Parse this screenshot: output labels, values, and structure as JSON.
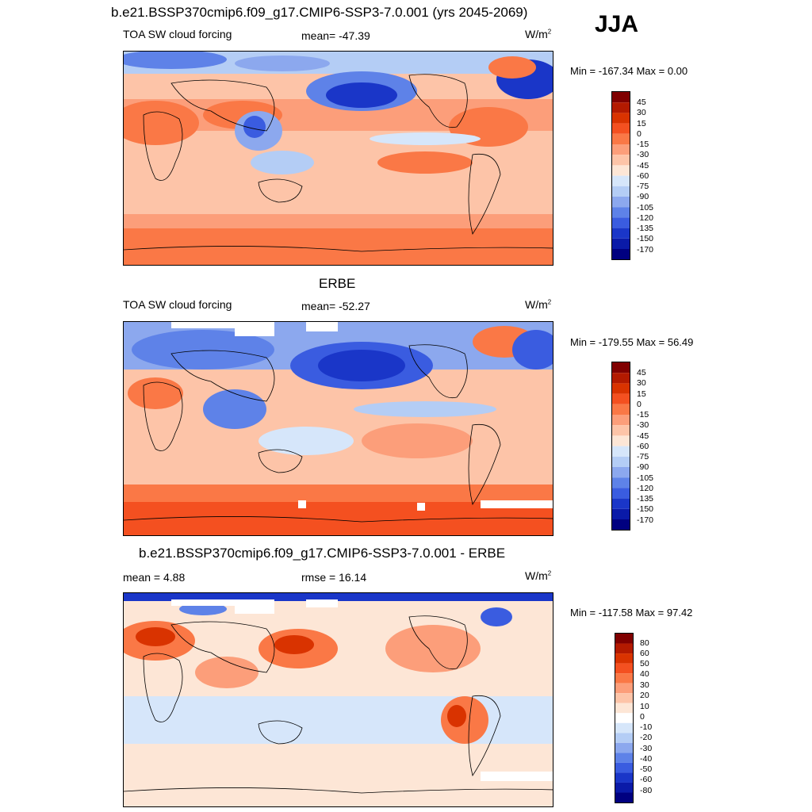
{
  "figure": {
    "title": "b.e21.BSSP370cmip6.f09_g17.CMIP6-SSP3-7.0.001 (yrs 2045-2069)",
    "season": "JJA"
  },
  "panels": [
    {
      "id": "model",
      "header": "",
      "left_label": "TOA SW cloud forcing",
      "center_label": "mean= -47.39",
      "units": "W/m",
      "units_sup": "2",
      "minmax": "Min = -167.34 Max =   0.00",
      "colorbar": [
        "45",
        "30",
        "15",
        "0",
        "-15",
        "-30",
        "-45",
        "-60",
        "-75",
        "-90",
        "-105",
        "-120",
        "-135",
        "-150",
        "-170"
      ]
    },
    {
      "id": "obs",
      "header": "ERBE",
      "left_label": "TOA SW cloud forcing",
      "center_label": "mean= -52.27",
      "units": "W/m",
      "units_sup": "2",
      "minmax": "Min = -179.55 Max =  56.49",
      "colorbar": [
        "45",
        "30",
        "15",
        "0",
        "-15",
        "-30",
        "-45",
        "-60",
        "-75",
        "-90",
        "-105",
        "-120",
        "-135",
        "-150",
        "-170"
      ]
    },
    {
      "id": "diff",
      "header": "b.e21.BSSP370cmip6.f09_g17.CMIP6-SSP3-7.0.001 - ERBE",
      "left_label": "mean =   4.88",
      "center_label": "rmse =  16.14",
      "units": "W/m",
      "units_sup": "2",
      "minmax": "Min = -117.58 Max =  97.42",
      "colorbar": [
        "80",
        "60",
        "50",
        "40",
        "30",
        "20",
        "10",
        "0",
        "-10",
        "-20",
        "-30",
        "-40",
        "-50",
        "-60",
        "-80"
      ]
    }
  ],
  "palette": {
    "abs": [
      "#800000",
      "#b31a00",
      "#d93300",
      "#f45020",
      "#fa7846",
      "#fc9e7a",
      "#fdc4a8",
      "#fde6d6",
      "#d6e6fa",
      "#b4cdf5",
      "#8ca8ee",
      "#5e82e8",
      "#3a5ce0",
      "#1a36c8",
      "#0a1aa8",
      "#000080"
    ],
    "diff": [
      "#800000",
      "#b31a00",
      "#d93300",
      "#f45020",
      "#fa7846",
      "#fc9e7a",
      "#fdc4a8",
      "#fde6d6",
      "#ffffff",
      "#d6e6fa",
      "#b4cdf5",
      "#8ca8ee",
      "#5e82e8",
      "#3a5ce0",
      "#1a36c8",
      "#0a1aa8",
      "#000080"
    ]
  }
}
